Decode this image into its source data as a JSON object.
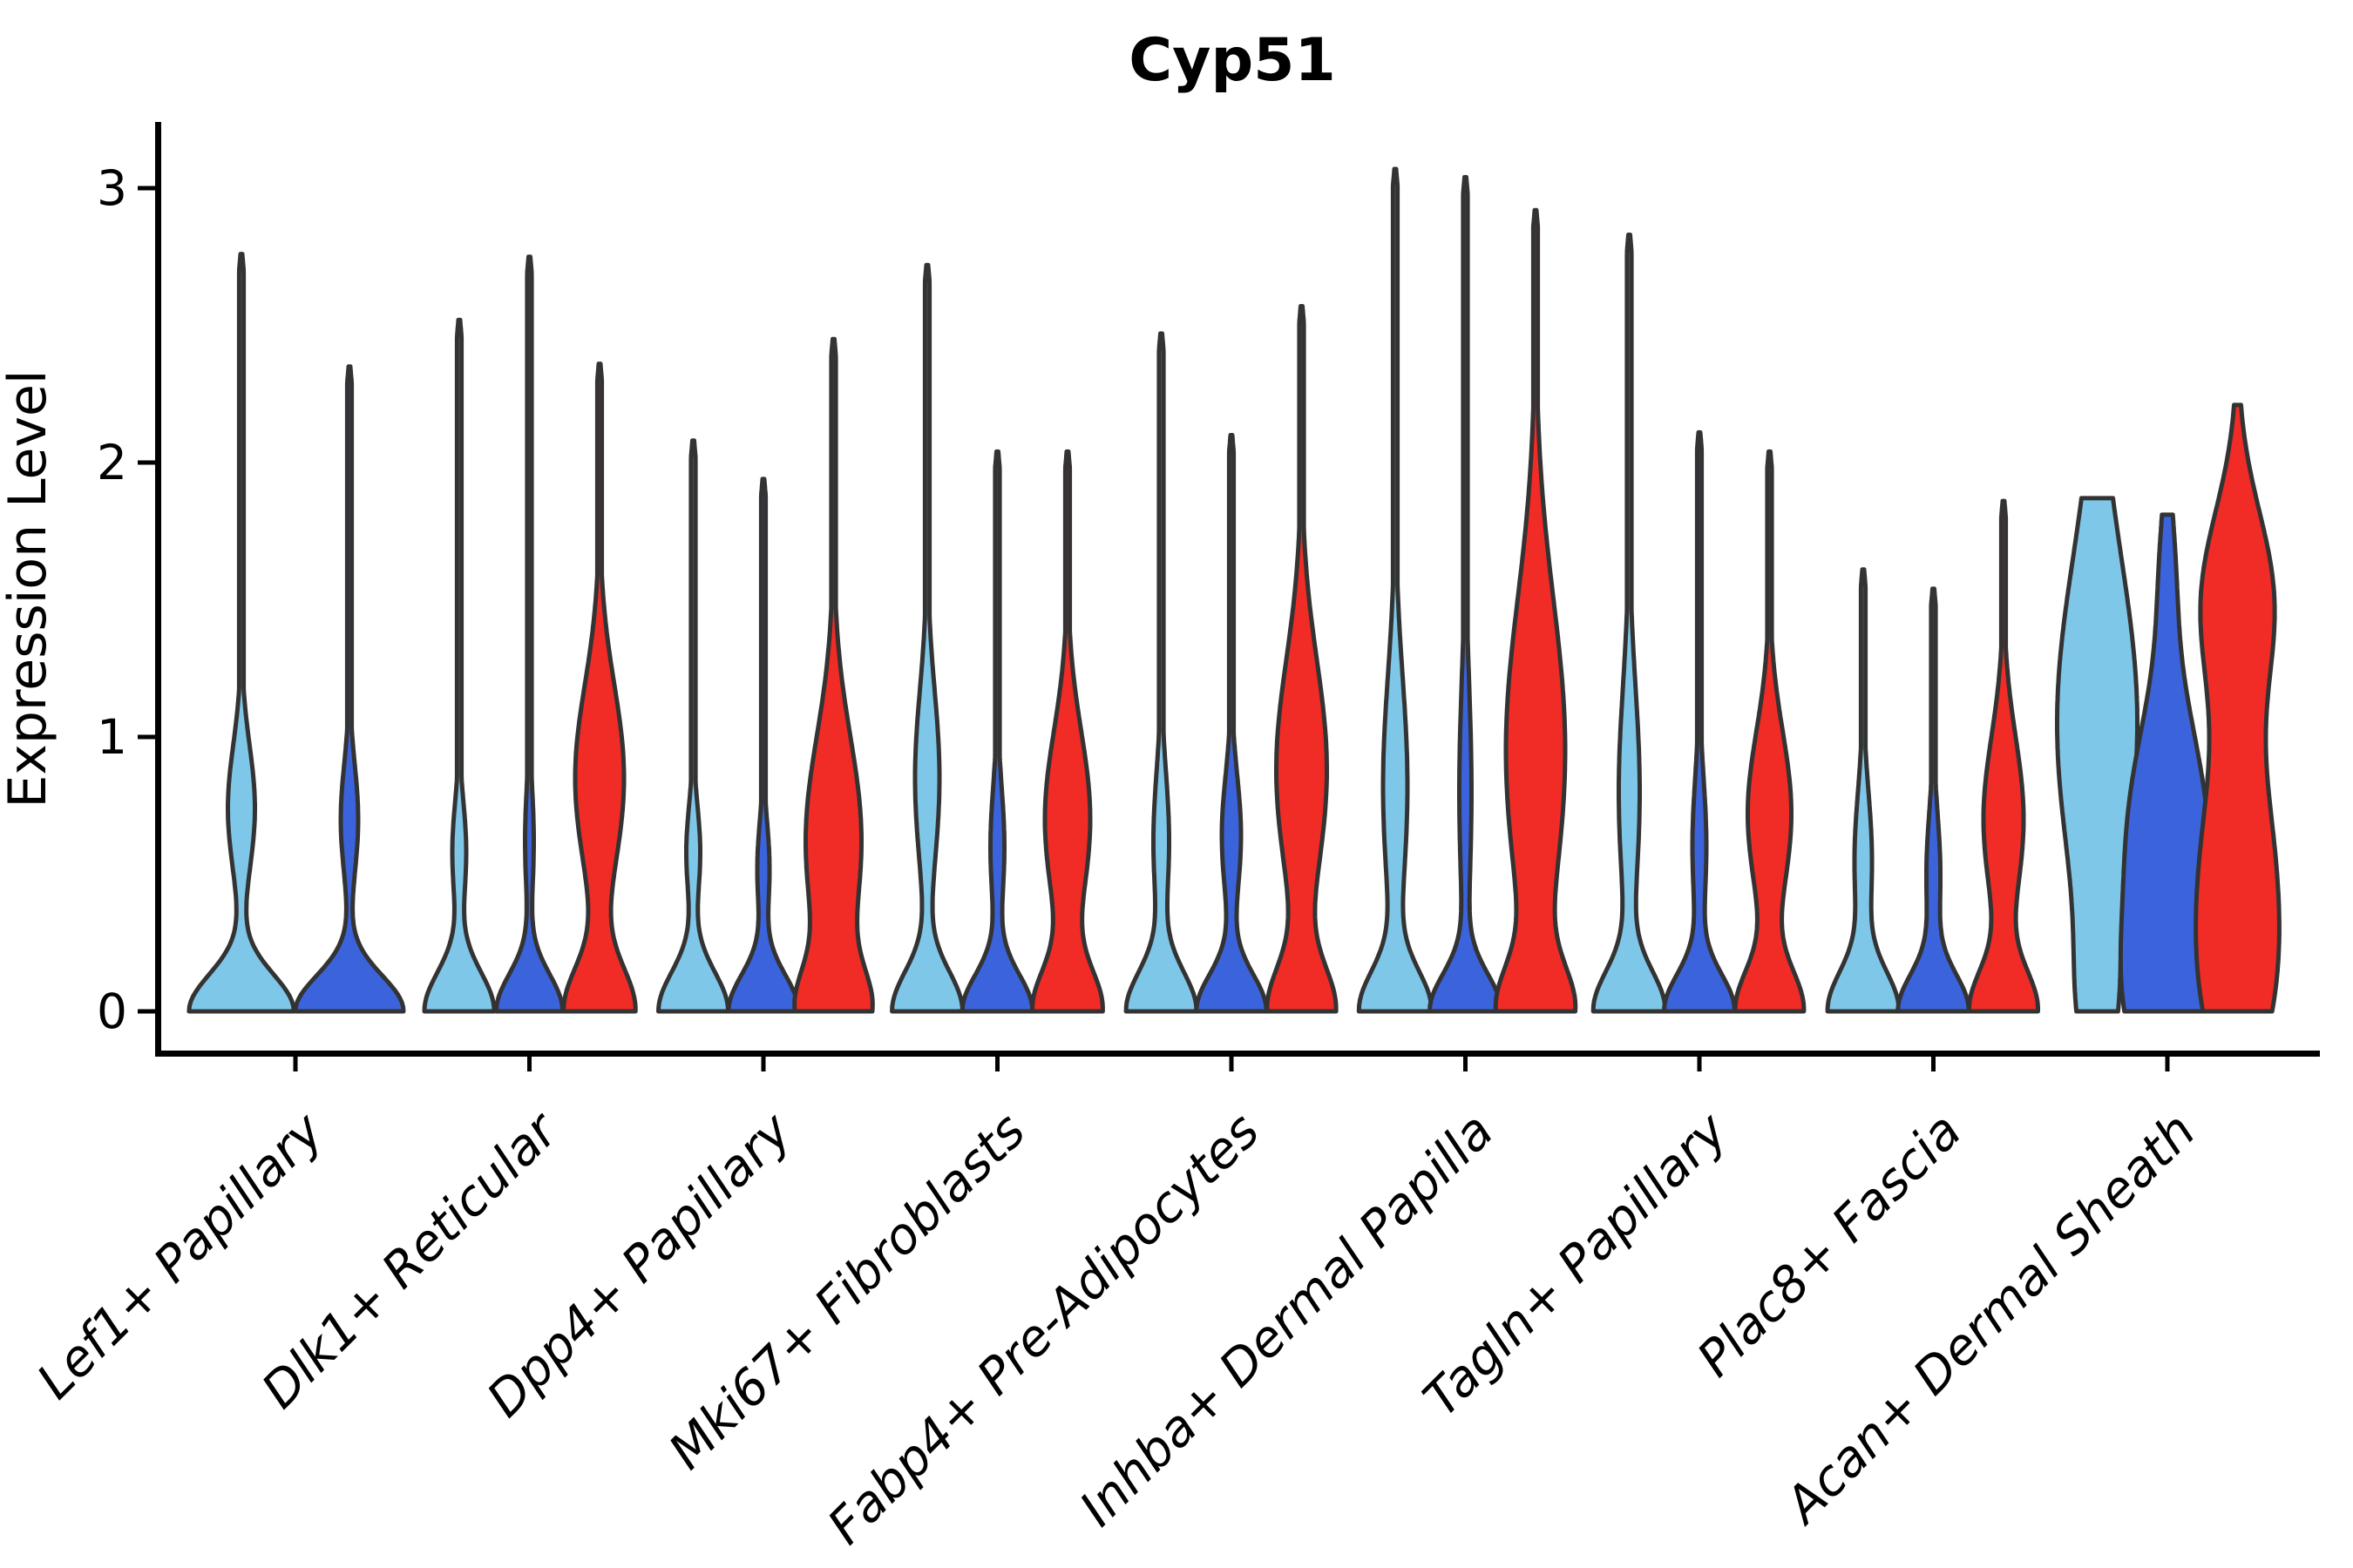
{
  "title": "Cyp51",
  "axes": {
    "y_label": "Expression Level",
    "y_tick_labels": [
      "0",
      "1",
      "2",
      "3"
    ]
  },
  "chart_data": {
    "type": "violin",
    "title": "Cyp51",
    "xlabel": "",
    "ylabel": "Expression Level",
    "yticks": [
      0,
      1,
      2,
      3
    ],
    "ylim": [
      0,
      3.25
    ],
    "grid": false,
    "legend": "none",
    "outline_color": "#333333",
    "background_color": "#ffffff",
    "series_colors": {
      "light_blue": "#7FC7E8",
      "dark_blue": "#3B64DC",
      "red": "#F12B25"
    },
    "note": "Each category shows split violins of expression level; width profile encoded as gaussian mixture [amplitude_px, mean_expr, sd_expr]; base is [amplitude_px, sd_expr] centered at 0; max is the top of each violin in expression units.",
    "categories": [
      {
        "label": "Lef1+ Papillary",
        "violins": [
          {
            "fill": "light_blue",
            "max": 2.76,
            "base": [
              60,
              0.135
            ],
            "bulges": [
              [
                15.5,
                0.74,
                0.23
              ]
            ],
            "flat": false
          },
          {
            "fill": "dark_blue",
            "max": 2.35,
            "base": [
              62,
              0.13
            ],
            "bulges": [
              [
                10,
                0.7,
                0.2
              ]
            ],
            "flat": false
          }
        ]
      },
      {
        "label": "Dlk1+ Reticular",
        "violins": [
          {
            "fill": "light_blue",
            "max": 2.52,
            "base": [
              40,
              0.145
            ],
            "bulges": [
              [
                8,
                0.58,
                0.18
              ]
            ],
            "flat": false
          },
          {
            "fill": "dark_blue",
            "max": 2.75,
            "base": [
              38,
              0.135
            ],
            "bulges": [
              [
                5,
                0.62,
                0.2
              ]
            ],
            "flat": false
          },
          {
            "fill": "red",
            "max": 2.36,
            "base": [
              40,
              0.16
            ],
            "bulges": [
              [
                28,
                0.85,
                0.34
              ]
            ],
            "flat": false
          }
        ]
      },
      {
        "label": "Dpp4+ Papillary",
        "violins": [
          {
            "fill": "light_blue",
            "max": 2.08,
            "base": [
              40,
              0.145
            ],
            "bulges": [
              [
                8,
                0.58,
                0.17
              ]
            ],
            "flat": false
          },
          {
            "fill": "dark_blue",
            "max": 1.94,
            "base": [
              40,
              0.135
            ],
            "bulges": [
              [
                7,
                0.52,
                0.17
              ]
            ],
            "flat": false
          },
          {
            "fill": "red",
            "max": 2.45,
            "base": [
              36,
              0.15
            ],
            "bulges": [
              [
                32,
                0.62,
                0.38
              ]
            ],
            "flat": false
          }
        ]
      },
      {
        "label": "Mki67+ Fibroblasts",
        "violins": [
          {
            "fill": "light_blue",
            "max": 2.72,
            "base": [
              40,
              0.145
            ],
            "bulges": [
              [
                14,
                0.85,
                0.32
              ]
            ],
            "flat": false
          },
          {
            "fill": "dark_blue",
            "max": 2.04,
            "base": [
              40,
              0.135
            ],
            "bulges": [
              [
                8,
                0.6,
                0.22
              ]
            ],
            "flat": false
          },
          {
            "fill": "red",
            "max": 2.04,
            "base": [
              38,
              0.15
            ],
            "bulges": [
              [
                26,
                0.7,
                0.32
              ]
            ],
            "flat": false
          }
        ]
      },
      {
        "label": "Fabp4+ Pre-Adipocytes",
        "violins": [
          {
            "fill": "light_blue",
            "max": 2.47,
            "base": [
              40,
              0.145
            ],
            "bulges": [
              [
                9,
                0.62,
                0.25
              ]
            ],
            "flat": false
          },
          {
            "fill": "dark_blue",
            "max": 2.1,
            "base": [
              40,
              0.135
            ],
            "bulges": [
              [
                11,
                0.64,
                0.22
              ]
            ],
            "flat": false
          },
          {
            "fill": "red",
            "max": 2.57,
            "base": [
              37,
              0.16
            ],
            "bulges": [
              [
                29,
                0.88,
                0.4
              ]
            ],
            "flat": false
          }
        ]
      },
      {
        "label": "Inhba+ Dermal Papilla",
        "violins": [
          {
            "fill": "light_blue",
            "max": 3.07,
            "base": [
              40,
              0.145
            ],
            "bulges": [
              [
                14,
                0.82,
                0.4
              ]
            ],
            "flat": false
          },
          {
            "fill": "dark_blue",
            "max": 3.04,
            "base": [
              40,
              0.135
            ],
            "bulges": [
              [
                7,
                0.8,
                0.4
              ]
            ],
            "flat": false
          },
          {
            "fill": "red",
            "max": 2.92,
            "base": [
              38,
              0.16
            ],
            "bulges": [
              [
                34,
                0.95,
                0.55
              ]
            ],
            "flat": false
          }
        ]
      },
      {
        "label": "Tagln+ Papillary",
        "violins": [
          {
            "fill": "light_blue",
            "max": 2.83,
            "base": [
              40,
              0.145
            ],
            "bulges": [
              [
                12,
                0.8,
                0.38
              ]
            ],
            "flat": false
          },
          {
            "fill": "dark_blue",
            "max": 2.11,
            "base": [
              40,
              0.135
            ],
            "bulges": [
              [
                8,
                0.6,
                0.25
              ]
            ],
            "flat": false
          },
          {
            "fill": "red",
            "max": 2.04,
            "base": [
              38,
              0.15
            ],
            "bulges": [
              [
                25,
                0.72,
                0.3
              ]
            ],
            "flat": false
          }
        ]
      },
      {
        "label": "Plac8+ Fascia",
        "violins": [
          {
            "fill": "light_blue",
            "max": 1.61,
            "base": [
              40,
              0.145
            ],
            "bulges": [
              [
                10,
                0.55,
                0.25
              ]
            ],
            "flat": false
          },
          {
            "fill": "dark_blue",
            "max": 1.54,
            "base": [
              40,
              0.135
            ],
            "bulges": [
              [
                8,
                0.5,
                0.22
              ]
            ],
            "flat": false
          },
          {
            "fill": "red",
            "max": 1.86,
            "base": [
              38,
              0.15
            ],
            "bulges": [
              [
                23,
                0.7,
                0.3
              ]
            ],
            "flat": false
          }
        ]
      },
      {
        "label": "Acan+ Dermal Sheath",
        "violins": [
          {
            "fill": "light_blue",
            "max": 1.87,
            "base": [
              14,
              0.25
            ],
            "bulges": [
              [
                46,
                1.05,
                0.6
              ]
            ],
            "flat": true
          },
          {
            "fill": "dark_blue",
            "max": 1.81,
            "base": [
              36,
              0.3
            ],
            "bulges": [
              [
                44,
                0.65,
                0.42
              ],
              [
                7,
                1.62,
                0.25
              ]
            ],
            "flat": true
          },
          {
            "fill": "red",
            "max": 2.21,
            "base": [
              20,
              0.3
            ],
            "bulges": [
              [
                40,
                0.5,
                0.42
              ],
              [
                40,
                1.5,
                0.33
              ]
            ],
            "flat": false
          }
        ]
      }
    ]
  }
}
